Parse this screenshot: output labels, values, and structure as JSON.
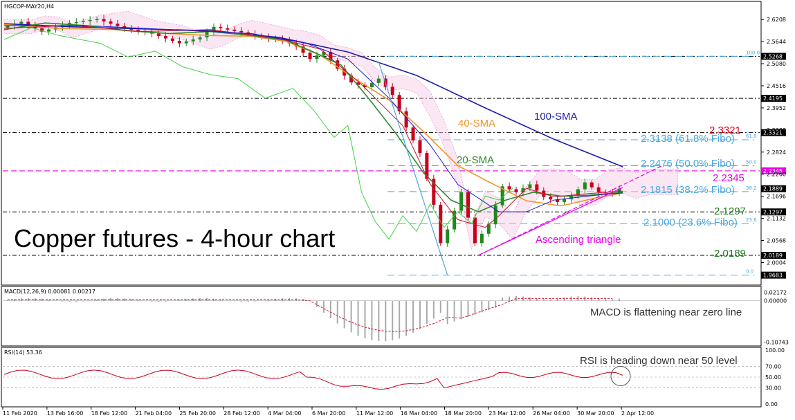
{
  "chart_data": {
    "type": "line",
    "symbol_header": "HGCOP-MAY20,H4",
    "title": "Copper futures - 4-hour chart",
    "price_axis": {
      "ticks": [
        "2.6208",
        "2.5644",
        "2.5080",
        "2.4516",
        "2.3952",
        "2.3388",
        "2.2824",
        "2.2260",
        "2.1696",
        "2.1132",
        "2.0568",
        "2.0004"
      ],
      "ylim": [
        1.95,
        2.66
      ]
    },
    "price_tags": [
      {
        "value": "2.5268",
        "color": "#000000"
      },
      {
        "value": "2.4195",
        "color": "#000000"
      },
      {
        "value": "2.3321",
        "color": "#000000"
      },
      {
        "value": "2.2345",
        "color": "#e800e8"
      },
      {
        "value": "2.1889",
        "color": "#000000"
      },
      {
        "value": "2.1297",
        "color": "#000000"
      },
      {
        "value": "2.0189",
        "color": "#000000"
      },
      {
        "value": "1.9683",
        "color": "#000000"
      }
    ],
    "fibo_levels": [
      {
        "level": "100.0",
        "value": 2.5268
      },
      {
        "level": "61.8",
        "value": 2.3138
      },
      {
        "level": "50.0",
        "value": 2.2476
      },
      {
        "level": "38.2",
        "value": 2.1815
      },
      {
        "level": "23.6",
        "value": 2.1
      },
      {
        "level": "0.0",
        "value": 1.9683
      }
    ],
    "annotations": {
      "sma100": "100-SMA",
      "sma40": "40-SMA",
      "sma20": "20-SMA",
      "fib618": "2.3138 (61.8% Fibo)",
      "fib50": "2.2476 (50.0% Fibo)",
      "fib382": "2.1815 (38.2% Fibo)",
      "fib236": "2.1000 (23.6% Fibo)",
      "lvl_2_3321": "2.3321",
      "lvl_2_2345": "2.2345",
      "lvl_2_1297": "2.1297",
      "lvl_2_0189": "2.0189",
      "triangle": "Ascending triangle"
    },
    "x_labels": [
      "11 Feb 2020",
      "13 Feb 16:00",
      "18 Feb 12:00",
      "21 Feb 04:00",
      "25 Feb 20:00",
      "28 Feb 12:00",
      "4 Mar 04:00",
      "6 Mar 20:00",
      "11 Mar 12:00",
      "16 Mar 04:00",
      "18 Mar 20:00",
      "23 Mar 12:00",
      "26 Mar 04:00",
      "30 Mar 20:00",
      "2 Apr 12:00"
    ],
    "series": [
      {
        "name": "100-SMA",
        "color": "#1c1ca8",
        "x": [
          0,
          10,
          20,
          30,
          40,
          50,
          60,
          70,
          80,
          90
        ],
        "y": [
          2.61,
          2.602,
          2.597,
          2.592,
          2.575,
          2.538,
          2.478,
          2.395,
          2.315,
          2.245
        ]
      },
      {
        "name": "40-SMA",
        "color": "#f0962a",
        "x": [
          0,
          8,
          16,
          24,
          30,
          36,
          41,
          46,
          51,
          56,
          61,
          66,
          71,
          76,
          81,
          86,
          90
        ],
        "y": [
          2.608,
          2.598,
          2.595,
          2.585,
          2.58,
          2.578,
          2.565,
          2.53,
          2.47,
          2.415,
          2.335,
          2.248,
          2.202,
          2.158,
          2.145,
          2.165,
          2.178
        ]
      },
      {
        "name": "20-SMA",
        "color": "#2a8a2a",
        "x": [
          0,
          6,
          12,
          18,
          24,
          30,
          36,
          41,
          45,
          49,
          53,
          57,
          61,
          65,
          69,
          73,
          77,
          81,
          85,
          90
        ],
        "y": [
          2.595,
          2.612,
          2.605,
          2.592,
          2.585,
          2.59,
          2.58,
          2.568,
          2.538,
          2.505,
          2.42,
          2.33,
          2.23,
          2.16,
          2.13,
          2.16,
          2.18,
          2.17,
          2.172,
          2.18
        ]
      }
    ],
    "macd": {
      "label": "MACD(12,26,9) 0.00081 0.00217",
      "ticks": [
        "0.02172",
        "0.00000",
        "-0.10743"
      ],
      "ylim": [
        -0.11,
        0.03
      ],
      "note": "MACD is flattening near zero line"
    },
    "rsi": {
      "label": "RSI(14) 53.36",
      "ticks": [
        "100.00",
        "70.00",
        "50.00",
        "30.00",
        "0.00"
      ],
      "ylim": [
        0,
        100
      ],
      "note": "RSI is heading down near 50 level"
    }
  }
}
